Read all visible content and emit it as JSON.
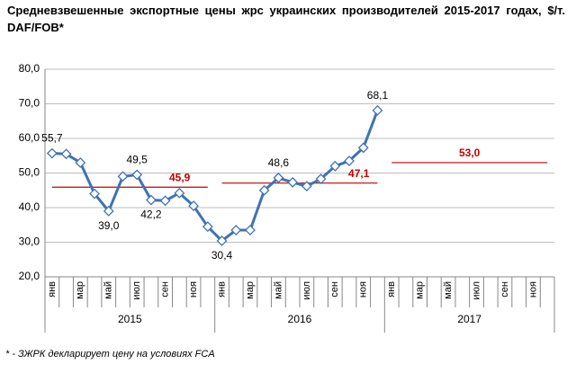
{
  "chart_data": {
    "type": "line",
    "title": "Средневзвешенные экспортные цены жрс украинских производителей 2015-2017 годах, $/т. DAF/FOB*",
    "categories": [
      "янв",
      null,
      "мар",
      null,
      "май",
      null,
      "июл",
      null,
      "сен",
      null,
      "ноя",
      null,
      "янв",
      null,
      "мар",
      null,
      "май",
      null,
      "июл",
      null,
      "сен",
      null,
      "ноя",
      null,
      "янв",
      null,
      "мар",
      null,
      "май",
      null,
      "июл",
      null,
      "сен",
      null,
      "ноя",
      null
    ],
    "years": [
      "2015",
      "2016",
      "2017"
    ],
    "series": [
      {
        "color": "#3f72b5",
        "values": [
          55.7,
          55.5,
          53,
          44,
          39.0,
          49,
          49.5,
          42.2,
          42,
          44.2,
          40.5,
          34.5,
          30.4,
          33.5,
          33.5,
          45,
          48.6,
          47.3,
          46.2,
          48.3,
          52,
          53.5,
          57.3,
          68.1,
          null,
          null,
          null,
          null,
          null,
          null,
          null,
          null,
          null,
          null,
          null,
          null
        ],
        "value_labels": [
          "55,7",
          null,
          null,
          null,
          "39,0",
          null,
          "49,5",
          "42,2",
          null,
          null,
          null,
          null,
          "30,4",
          null,
          null,
          null,
          "48,6",
          null,
          null,
          null,
          null,
          null,
          null,
          "68,1",
          null,
          null,
          null,
          null,
          null,
          null,
          null,
          null,
          null,
          null,
          null,
          null
        ]
      }
    ],
    "annual_averages": {
      "color": "#c00000",
      "values": [
        45.9,
        47.1,
        53.0
      ],
      "value_labels": [
        "45,9",
        "47,1",
        "53,0"
      ]
    },
    "ylim": [
      20,
      80
    ],
    "yticks": [
      {
        "value": 20,
        "label": "20,0"
      },
      {
        "value": 30,
        "label": "30,0"
      },
      {
        "value": 40,
        "label": "40,0"
      },
      {
        "value": 50,
        "label": "50,0"
      },
      {
        "value": 60,
        "label": "60,0"
      },
      {
        "value": 70,
        "label": "70,0"
      },
      {
        "value": 80,
        "label": "80,0"
      }
    ],
    "grid": true,
    "footnote": "* - ЗЖРК декларирует цену на условиях FCA"
  }
}
